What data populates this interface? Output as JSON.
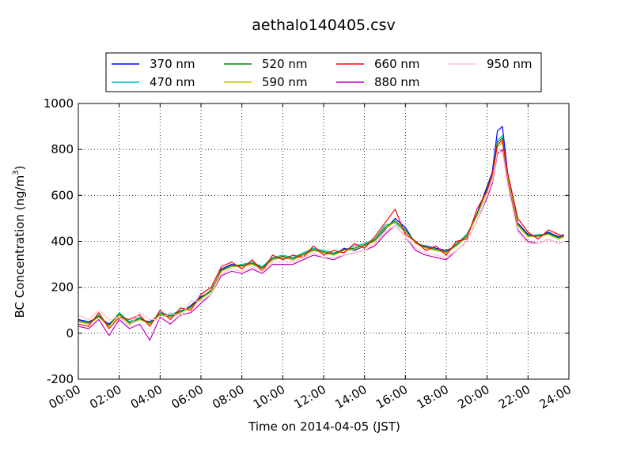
{
  "chart_data": {
    "type": "line",
    "title": "aethalo140405.csv",
    "xlabel": "Time on 2014-04-05 (JST)",
    "ylabel": "BC Concentration (ng/m³)",
    "ylabel_parts": {
      "main": "BC Concentration (ng/m",
      "sup": "3",
      "close": ")"
    },
    "xlim": [
      "00:00",
      "24:00"
    ],
    "ylim": [
      -200,
      1000
    ],
    "x_tick_labels": [
      "00:00",
      "02:00",
      "04:00",
      "06:00",
      "08:00",
      "10:00",
      "12:00",
      "14:00",
      "16:00",
      "18:00",
      "20:00",
      "22:00",
      "24:00"
    ],
    "y_tick_labels": [
      "-200",
      "0",
      "200",
      "400",
      "600",
      "800",
      "1000"
    ],
    "grid": true,
    "legend_position": "top-center",
    "x": [
      "00:00",
      "00:30",
      "01:00",
      "01:30",
      "02:00",
      "02:30",
      "03:00",
      "03:30",
      "04:00",
      "04:30",
      "05:00",
      "05:30",
      "06:00",
      "06:30",
      "07:00",
      "07:30",
      "08:00",
      "08:30",
      "09:00",
      "09:30",
      "10:00",
      "10:30",
      "11:00",
      "11:30",
      "12:00",
      "12:30",
      "13:00",
      "13:30",
      "14:00",
      "14:30",
      "15:00",
      "15:30",
      "16:00",
      "16:30",
      "17:00",
      "17:30",
      "18:00",
      "18:30",
      "19:00",
      "19:30",
      "20:00",
      "20:15",
      "20:30",
      "20:45",
      "21:00",
      "21:30",
      "22:00",
      "22:30",
      "23:00",
      "23:30",
      "23:45"
    ],
    "series": [
      {
        "name": "370 nm",
        "color": "#0000ff",
        "values": [
          60,
          50,
          70,
          40,
          80,
          40,
          60,
          50,
          80,
          70,
          90,
          120,
          160,
          180,
          280,
          300,
          290,
          300,
          280,
          320,
          330,
          320,
          340,
          360,
          350,
          340,
          370,
          360,
          380,
          400,
          450,
          500,
          460,
          390,
          380,
          370,
          360,
          380,
          420,
          520,
          640,
          700,
          880,
          900,
          700,
          480,
          430,
          420,
          440,
          420,
          430
        ]
      },
      {
        "name": "470 nm",
        "color": "#00bfbf",
        "values": [
          50,
          40,
          80,
          30,
          90,
          50,
          70,
          40,
          90,
          80,
          100,
          110,
          150,
          190,
          270,
          290,
          300,
          310,
          290,
          330,
          340,
          330,
          350,
          370,
          360,
          350,
          360,
          380,
          390,
          410,
          470,
          480,
          440,
          400,
          370,
          360,
          350,
          390,
          430,
          510,
          620,
          680,
          840,
          860,
          680,
          470,
          420,
          430,
          430,
          410,
          420
        ]
      },
      {
        "name": "520 nm",
        "color": "#008000",
        "values": [
          55,
          45,
          75,
          35,
          85,
          45,
          65,
          45,
          85,
          75,
          95,
          115,
          155,
          185,
          275,
          295,
          295,
          305,
          285,
          325,
          335,
          325,
          345,
          365,
          355,
          345,
          365,
          370,
          385,
          405,
          460,
          490,
          450,
          395,
          375,
          365,
          355,
          385,
          425,
          515,
          630,
          690,
          830,
          850,
          690,
          475,
          425,
          425,
          435,
          415,
          425
        ]
      },
      {
        "name": "590 nm",
        "color": "#bfbf00",
        "values": [
          50,
          40,
          70,
          30,
          80,
          40,
          60,
          40,
          80,
          70,
          90,
          110,
          150,
          180,
          270,
          290,
          290,
          300,
          280,
          320,
          330,
          320,
          340,
          360,
          350,
          340,
          360,
          365,
          380,
          400,
          455,
          485,
          445,
          390,
          370,
          360,
          350,
          380,
          420,
          510,
          620,
          680,
          810,
          830,
          680,
          470,
          420,
          420,
          430,
          410,
          420
        ]
      },
      {
        "name": "660 nm",
        "color": "#ff0000",
        "values": [
          40,
          30,
          90,
          20,
          70,
          60,
          80,
          30,
          100,
          60,
          110,
          100,
          170,
          200,
          290,
          310,
          280,
          320,
          270,
          340,
          320,
          340,
          330,
          380,
          340,
          360,
          350,
          390,
          370,
          420,
          480,
          540,
          430,
          400,
          360,
          380,
          340,
          400,
          410,
          540,
          620,
          690,
          820,
          840,
          700,
          500,
          440,
          410,
          450,
          430,
          420
        ]
      },
      {
        "name": "880 nm",
        "color": "#bf00bf",
        "values": [
          30,
          20,
          60,
          -10,
          60,
          20,
          40,
          -30,
          70,
          40,
          80,
          90,
          130,
          170,
          250,
          270,
          260,
          280,
          260,
          300,
          300,
          300,
          320,
          340,
          330,
          320,
          340,
          350,
          360,
          380,
          430,
          470,
          420,
          360,
          340,
          330,
          320,
          360,
          400,
          490,
          590,
          650,
          780,
          800,
          660,
          450,
          400,
          390,
          410,
          390,
          400
        ]
      },
      {
        "name": "950 nm",
        "color": "#ffc0cb",
        "values": [
          80,
          60,
          100,
          60,
          70,
          30,
          90,
          60,
          60,
          90,
          70,
          140,
          140,
          170,
          260,
          280,
          270,
          290,
          270,
          310,
          310,
          310,
          330,
          350,
          330,
          330,
          340,
          350,
          360,
          390,
          440,
          470,
          420,
          370,
          350,
          340,
          330,
          360,
          400,
          490,
          600,
          660,
          790,
          790,
          650,
          440,
          390,
          390,
          410,
          390,
          400
        ]
      }
    ]
  }
}
